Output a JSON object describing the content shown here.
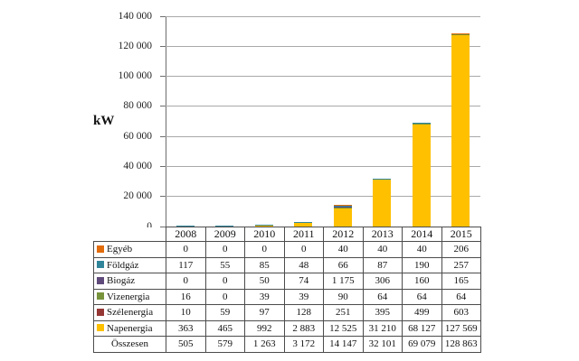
{
  "chart_data": {
    "type": "bar",
    "stacked": true,
    "title": "",
    "ylabel": "kW",
    "xlabel": "",
    "ylim": [
      0,
      140000
    ],
    "ytick_step": 20000,
    "grid": true,
    "legend_position": "data-table-left",
    "categories": [
      "2008",
      "2009",
      "2010",
      "2011",
      "2012",
      "2013",
      "2014",
      "2015"
    ],
    "series": [
      {
        "name": "Egyéb",
        "color": "#E26B0A",
        "values": [
          0,
          0,
          0,
          0,
          40,
          40,
          40,
          206
        ]
      },
      {
        "name": "Földgáz",
        "color": "#31859B",
        "values": [
          117,
          55,
          85,
          48,
          66,
          87,
          190,
          257
        ]
      },
      {
        "name": "Biogáz",
        "color": "#604A7B",
        "values": [
          0,
          0,
          50,
          74,
          1175,
          306,
          160,
          165
        ]
      },
      {
        "name": "Vizenergia",
        "color": "#77933C",
        "values": [
          16,
          0,
          39,
          39,
          90,
          64,
          64,
          64
        ]
      },
      {
        "name": "Szélenergia",
        "color": "#953734",
        "values": [
          10,
          59,
          97,
          128,
          251,
          395,
          499,
          603
        ]
      },
      {
        "name": "Napenergia",
        "color": "#FFC000",
        "values": [
          363,
          465,
          992,
          2883,
          12525,
          31210,
          68127,
          127569
        ]
      }
    ],
    "totals": {
      "name": "Összesen",
      "values": [
        505,
        579,
        1263,
        3172,
        14147,
        32101,
        69079,
        128863
      ]
    },
    "stack_order_bottom_to_top": [
      "Napenergia",
      "Szélenergia",
      "Vizenergia",
      "Biogáz",
      "Földgáz",
      "Egyéb"
    ]
  }
}
